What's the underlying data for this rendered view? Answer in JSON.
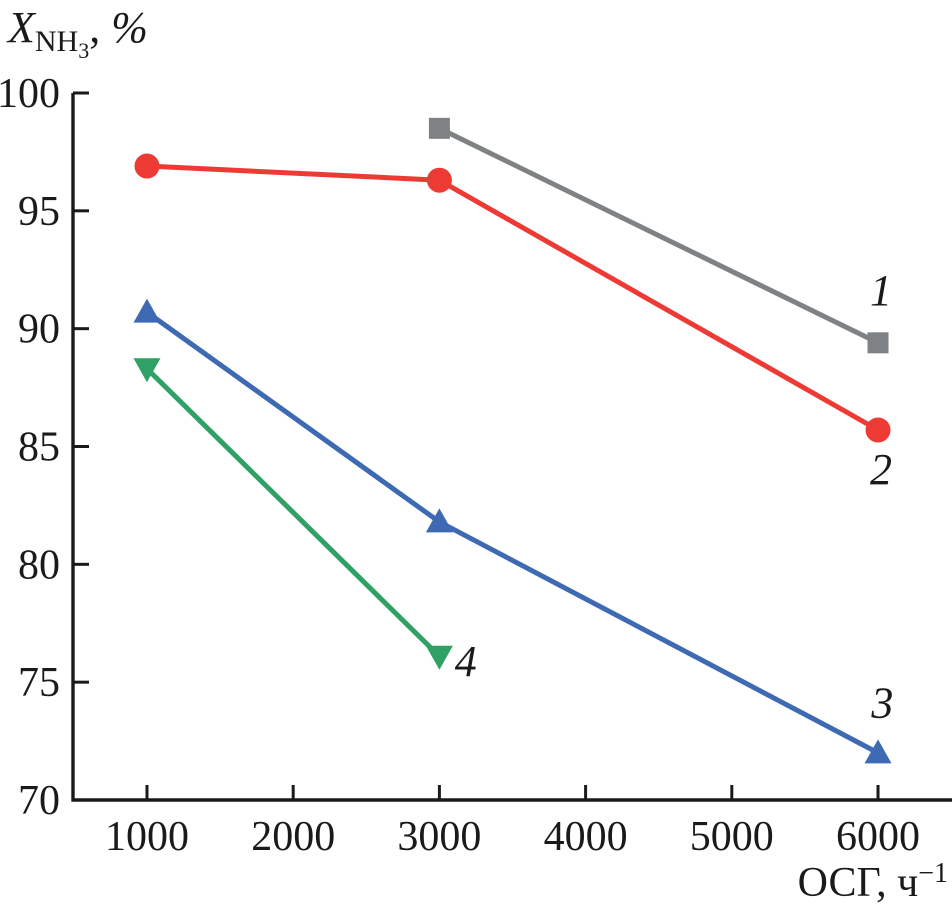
{
  "figure": {
    "background": "#ffffff",
    "axis_color": "#1a1a1a",
    "y_axis_title": {
      "main": "X",
      "sub": "NH",
      "subsub": "3",
      "sep": ", ",
      "percent": "%"
    },
    "x_axis_title": {
      "main": "ОСГ, ч",
      "sup": "−1"
    }
  },
  "chart_data": {
    "type": "line",
    "title": "",
    "ylabel": "X_NH3, %",
    "xlabel": "ОСГ, ч^−1",
    "xlim": [
      494,
      6506
    ],
    "ylim": [
      70,
      100
    ],
    "x_ticks": [
      1000,
      2000,
      3000,
      4000,
      5000,
      6000
    ],
    "y_ticks": [
      70,
      75,
      80,
      85,
      90,
      95,
      100
    ],
    "grid": false,
    "legend_position": "inline-curve-labels",
    "series": [
      {
        "name": "1",
        "label": "1",
        "color": "#7f8284",
        "marker": "square",
        "x": [
          3000,
          6000
        ],
        "y": [
          98.5,
          89.4
        ],
        "label_at": [
          6020,
          91.6
        ]
      },
      {
        "name": "2",
        "label": "2",
        "color": "#ed3a34",
        "marker": "circle",
        "x": [
          1000,
          3000,
          6000
        ],
        "y": [
          96.9,
          96.3,
          85.7
        ],
        "label_at": [
          6020,
          84.0
        ]
      },
      {
        "name": "3",
        "label": "3",
        "color": "#3d6ab3",
        "marker": "triangle-up",
        "x": [
          1000,
          3000,
          6000
        ],
        "y": [
          90.7,
          81.8,
          72.0
        ],
        "label_at": [
          6030,
          74.1
        ]
      },
      {
        "name": "4",
        "label": "4",
        "color": "#2fa164",
        "marker": "triangle-down",
        "x": [
          1000,
          3000
        ],
        "y": [
          88.3,
          76.1
        ],
        "label_at": [
          3180,
          75.85
        ]
      }
    ]
  }
}
